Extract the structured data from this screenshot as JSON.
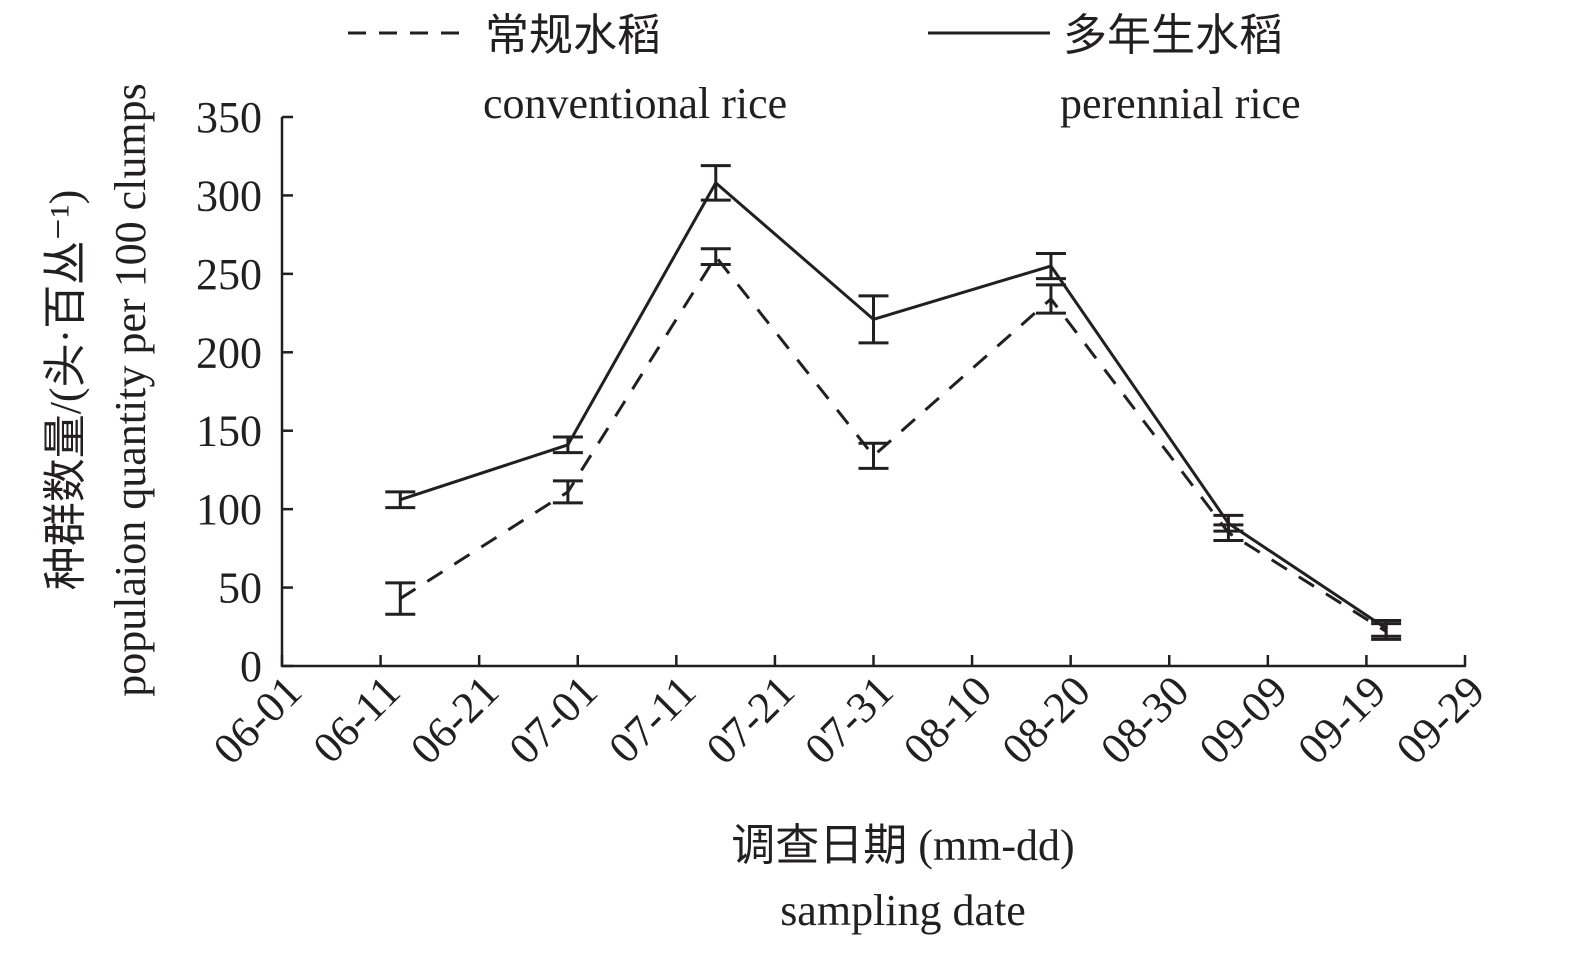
{
  "chart_data": {
    "type": "line",
    "title": "",
    "xlabel": "调查日期 (mm-dd)",
    "xlabel_en": "sampling date",
    "ylabel": "种群数量/(头·百丛⁻¹)",
    "ylabel_en": "populaion quantity per 100 clumps",
    "ylim": [
      0,
      350
    ],
    "yticks": [
      0,
      50,
      100,
      150,
      200,
      250,
      300,
      350
    ],
    "xlim_days": [
      0,
      120
    ],
    "xticks": [
      "06-01",
      "06-11",
      "06-21",
      "07-01",
      "07-11",
      "07-21",
      "07-31",
      "08-10",
      "08-20",
      "08-30",
      "09-09",
      "09-19",
      "09-29"
    ],
    "x_days_since_0601": [
      12,
      29,
      44,
      60,
      78,
      96,
      112
    ],
    "x_dates": [
      "06-13",
      "06-30",
      "07-15",
      "07-31",
      "08-18",
      "09-05",
      "09-21"
    ],
    "legend_position": "top",
    "grid": false,
    "series": [
      {
        "name": "常规水稻",
        "name_en": "conventional rice",
        "style": "dashed",
        "values": [
          43,
          111,
          261,
          134,
          234,
          85,
          22
        ],
        "errors": [
          10,
          7,
          5,
          8,
          9,
          5,
          5
        ]
      },
      {
        "name": "多年生水稻",
        "name_en": "perennial rice",
        "style": "solid",
        "values": [
          106,
          141,
          308,
          221,
          255,
          91,
          24
        ],
        "errors": [
          5,
          5,
          11,
          15,
          8,
          5,
          5
        ]
      }
    ]
  }
}
